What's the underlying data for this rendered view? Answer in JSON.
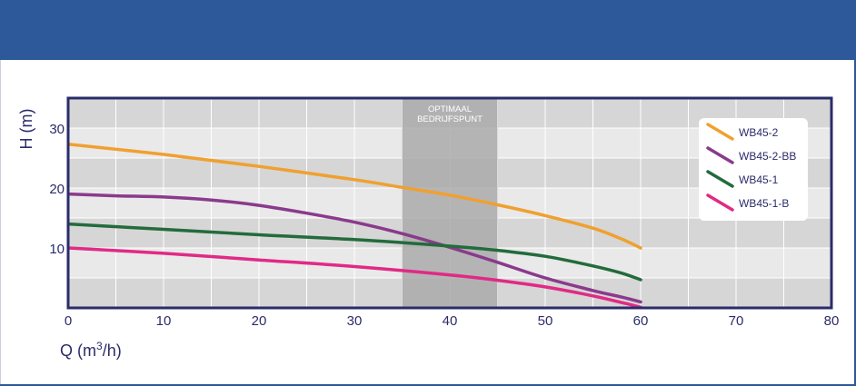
{
  "header": {
    "title": ""
  },
  "chart_data": {
    "type": "line",
    "title": "",
    "xlabel_prefix": "Q (m",
    "xlabel_sup": "3",
    "xlabel_suffix": "/h)",
    "ylabel": "H (m)",
    "xlim": [
      0,
      80
    ],
    "ylim": [
      0,
      35
    ],
    "x_ticks": [
      0,
      10,
      20,
      30,
      40,
      50,
      60,
      70,
      80
    ],
    "y_ticks": [
      10,
      20,
      30
    ],
    "grid": true,
    "legend_position": "top-right",
    "optimal_band": {
      "x_range": [
        35,
        45
      ],
      "label_line1": "OPTIMAAL",
      "label_line2": "BEDRIJFSPUNT",
      "color": "#aaaaaa"
    },
    "series": [
      {
        "name": "WB45-2",
        "color": "#f0a030",
        "x": [
          0,
          10,
          20,
          30,
          35,
          40,
          45,
          50,
          55,
          58,
          60
        ],
        "y": [
          27.3,
          25.6,
          23.6,
          21.4,
          20.1,
          18.8,
          17.2,
          15.4,
          13.3,
          11.5,
          10.0
        ]
      },
      {
        "name": "WB45-2-BB",
        "color": "#8a3a8c",
        "x": [
          0,
          5,
          10,
          15,
          20,
          25,
          30,
          35,
          40,
          45,
          50,
          55,
          58,
          60
        ],
        "y": [
          19.0,
          18.7,
          18.5,
          18.0,
          17.1,
          15.8,
          14.3,
          12.4,
          10.1,
          7.6,
          5.0,
          2.9,
          1.8,
          1.0
        ]
      },
      {
        "name": "WB45-1",
        "color": "#236b3c",
        "x": [
          0,
          10,
          20,
          30,
          40,
          45,
          50,
          55,
          58,
          60
        ],
        "y": [
          14.0,
          13.1,
          12.2,
          11.4,
          10.3,
          9.6,
          8.6,
          7.0,
          5.8,
          4.7
        ]
      },
      {
        "name": "WB45-1-B",
        "color": "#e02a86",
        "x": [
          0,
          10,
          20,
          30,
          40,
          45,
          50,
          55,
          58,
          60
        ],
        "y": [
          10.0,
          9.1,
          8.0,
          6.9,
          5.5,
          4.6,
          3.5,
          2.0,
          0.9,
          0.1
        ]
      }
    ]
  }
}
